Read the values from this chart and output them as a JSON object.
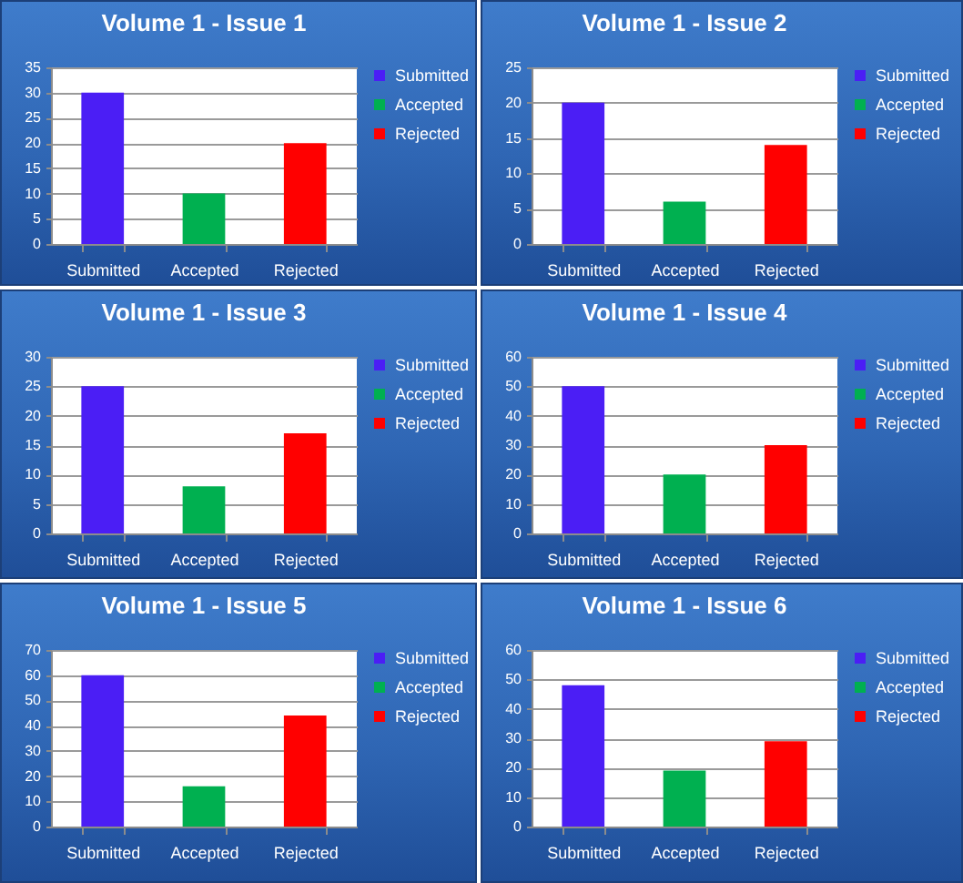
{
  "chart_data": [
    {
      "type": "bar",
      "title": "Volume 1 - Issue 1",
      "categories": [
        "Submitted",
        "Accepted",
        "Rejected"
      ],
      "series": [
        {
          "name": "Submitted",
          "color": "#4b1ef5",
          "values": [
            30,
            null,
            null
          ]
        },
        {
          "name": "Accepted",
          "color": "#00b050",
          "values": [
            null,
            10,
            null
          ]
        },
        {
          "name": "Rejected",
          "color": "#ff0000",
          "values": [
            null,
            null,
            20
          ]
        }
      ],
      "stacked": true,
      "ylim": [
        0,
        35
      ],
      "yticks": [
        0,
        5,
        10,
        15,
        20,
        25,
        30,
        35
      ],
      "grid": "y",
      "legend": "right"
    },
    {
      "type": "bar",
      "title": "Volume 1 - Issue 2",
      "categories": [
        "Submitted",
        "Accepted",
        "Rejected"
      ],
      "series": [
        {
          "name": "Submitted",
          "color": "#4b1ef5",
          "values": [
            20,
            null,
            null
          ]
        },
        {
          "name": "Accepted",
          "color": "#00b050",
          "values": [
            null,
            6,
            null
          ]
        },
        {
          "name": "Rejected",
          "color": "#ff0000",
          "values": [
            null,
            null,
            14
          ]
        }
      ],
      "stacked": true,
      "ylim": [
        0,
        25
      ],
      "yticks": [
        0,
        5,
        10,
        15,
        20,
        25
      ],
      "grid": "y",
      "legend": "right"
    },
    {
      "type": "bar",
      "title": "Volume 1 - Issue 3",
      "categories": [
        "Submitted",
        "Accepted",
        "Rejected"
      ],
      "series": [
        {
          "name": "Submitted",
          "color": "#4b1ef5",
          "values": [
            25,
            null,
            null
          ]
        },
        {
          "name": "Accepted",
          "color": "#00b050",
          "values": [
            null,
            8,
            null
          ]
        },
        {
          "name": "Rejected",
          "color": "#ff0000",
          "values": [
            null,
            null,
            17
          ]
        }
      ],
      "stacked": true,
      "ylim": [
        0,
        30
      ],
      "yticks": [
        0,
        5,
        10,
        15,
        20,
        25,
        30
      ],
      "grid": "y",
      "legend": "right"
    },
    {
      "type": "bar",
      "title": "Volume 1 - Issue 4",
      "categories": [
        "Submitted",
        "Accepted",
        "Rejected"
      ],
      "series": [
        {
          "name": "Submitted",
          "color": "#4b1ef5",
          "values": [
            50,
            null,
            null
          ]
        },
        {
          "name": "Accepted",
          "color": "#00b050",
          "values": [
            null,
            20,
            null
          ]
        },
        {
          "name": "Rejected",
          "color": "#ff0000",
          "values": [
            null,
            null,
            30
          ]
        }
      ],
      "stacked": true,
      "ylim": [
        0,
        60
      ],
      "yticks": [
        0,
        10,
        20,
        30,
        40,
        50,
        60
      ],
      "grid": "y",
      "legend": "right"
    },
    {
      "type": "bar",
      "title": "Volume 1 - Issue 5",
      "categories": [
        "Submitted",
        "Accepted",
        "Rejected"
      ],
      "series": [
        {
          "name": "Submitted",
          "color": "#4b1ef5",
          "values": [
            60,
            null,
            null
          ]
        },
        {
          "name": "Accepted",
          "color": "#00b050",
          "values": [
            null,
            16,
            null
          ]
        },
        {
          "name": "Rejected",
          "color": "#ff0000",
          "values": [
            null,
            null,
            44
          ]
        }
      ],
      "stacked": true,
      "ylim": [
        0,
        70
      ],
      "yticks": [
        0,
        10,
        20,
        30,
        40,
        50,
        60,
        70
      ],
      "grid": "y",
      "legend": "right"
    },
    {
      "type": "bar",
      "title": "Volume 1 - Issue 6",
      "categories": [
        "Submitted",
        "Accepted",
        "Rejected"
      ],
      "series": [
        {
          "name": "Submitted",
          "color": "#4b1ef5",
          "values": [
            48,
            null,
            null
          ]
        },
        {
          "name": "Accepted",
          "color": "#00b050",
          "values": [
            null,
            19,
            null
          ]
        },
        {
          "name": "Rejected",
          "color": "#ff0000",
          "values": [
            null,
            null,
            29
          ]
        }
      ],
      "stacked": true,
      "ylim": [
        0,
        60
      ],
      "yticks": [
        0,
        10,
        20,
        30,
        40,
        50,
        60
      ],
      "grid": "y",
      "legend": "right"
    }
  ]
}
